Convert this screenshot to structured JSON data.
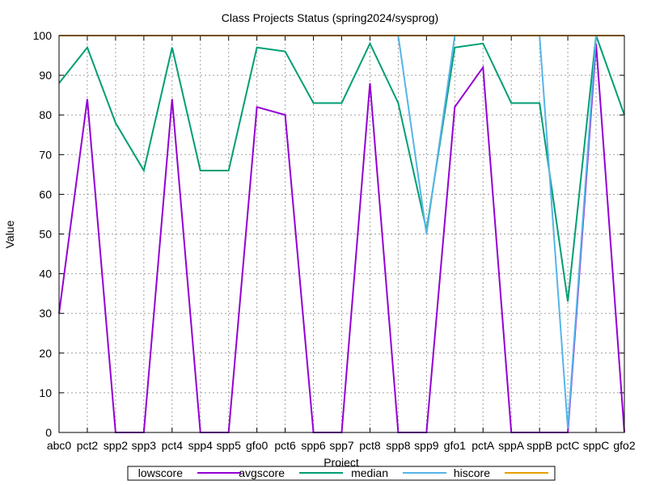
{
  "chart_data": {
    "type": "line",
    "title": "Class Projects Status (spring2024/sysprog)",
    "xlabel": "Project",
    "ylabel": "Value",
    "ylim": [
      0,
      100
    ],
    "yticks": [
      0,
      10,
      20,
      30,
      40,
      50,
      60,
      70,
      80,
      90,
      100
    ],
    "grid": true,
    "legend_position": "bottom",
    "categories": [
      "abc0",
      "pct2",
      "spp2",
      "spp3",
      "pct4",
      "spp4",
      "spp5",
      "gfo0",
      "pct6",
      "spp6",
      "spp7",
      "pct8",
      "spp8",
      "spp9",
      "gfo1",
      "pctA",
      "sppA",
      "sppB",
      "pctC",
      "sppC",
      "gfo2"
    ],
    "series": [
      {
        "name": "lowscore",
        "color": "#9400d3",
        "values": [
          30,
          84,
          0,
          0,
          84,
          0,
          0,
          82,
          80,
          0,
          0,
          88,
          0,
          0,
          82,
          92,
          0,
          0,
          0,
          98,
          0
        ]
      },
      {
        "name": "avgscore",
        "color": "#009e73",
        "values": [
          88,
          97,
          78,
          66,
          97,
          66,
          66,
          97,
          96,
          83,
          83,
          98,
          83,
          51,
          97,
          98,
          83,
          83,
          33,
          100,
          80
        ]
      },
      {
        "name": "median",
        "color": "#56b4e9",
        "values": [
          100,
          100,
          100,
          100,
          100,
          100,
          100,
          100,
          100,
          100,
          100,
          100,
          100,
          50,
          100,
          100,
          100,
          100,
          1,
          100,
          100
        ]
      },
      {
        "name": "hiscore",
        "color": "#e69f00",
        "values": [
          100,
          100,
          100,
          100,
          100,
          100,
          100,
          100,
          100,
          100,
          100,
          100,
          100,
          100,
          100,
          100,
          100,
          100,
          100,
          100,
          100
        ]
      }
    ]
  }
}
